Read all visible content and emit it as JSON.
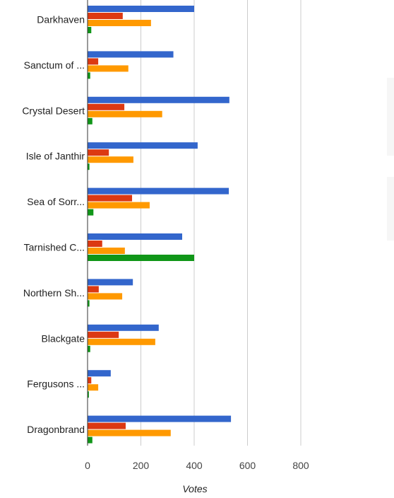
{
  "chart_data": {
    "type": "bar",
    "orientation": "horizontal",
    "categories": [
      "Darkhaven",
      "Sanctum of ...",
      "Crystal Desert",
      "Isle of Janthir",
      "Sea of Sorr...",
      "Tarnished C...",
      "Northern Sh...",
      "Blackgate",
      "Fergusons ...",
      "Dragonbrand"
    ],
    "series": [
      {
        "color": "#3366cc",
        "values": [
          400,
          322,
          532,
          413,
          530,
          355,
          170,
          267,
          87,
          538
        ]
      },
      {
        "color": "#dc3912",
        "values": [
          132,
          40,
          138,
          80,
          167,
          55,
          42,
          117,
          14,
          143
        ]
      },
      {
        "color": "#ff9900",
        "values": [
          238,
          153,
          280,
          172,
          233,
          140,
          130,
          254,
          40,
          312
        ]
      },
      {
        "color": "#109618",
        "values": [
          14,
          10,
          18,
          7,
          22,
          400,
          7,
          10,
          5,
          18
        ]
      }
    ],
    "xlabel": "Votes",
    "xlim": [
      0,
      1000
    ],
    "xticks": [
      0,
      200,
      400,
      600,
      800
    ],
    "grid": true
  }
}
